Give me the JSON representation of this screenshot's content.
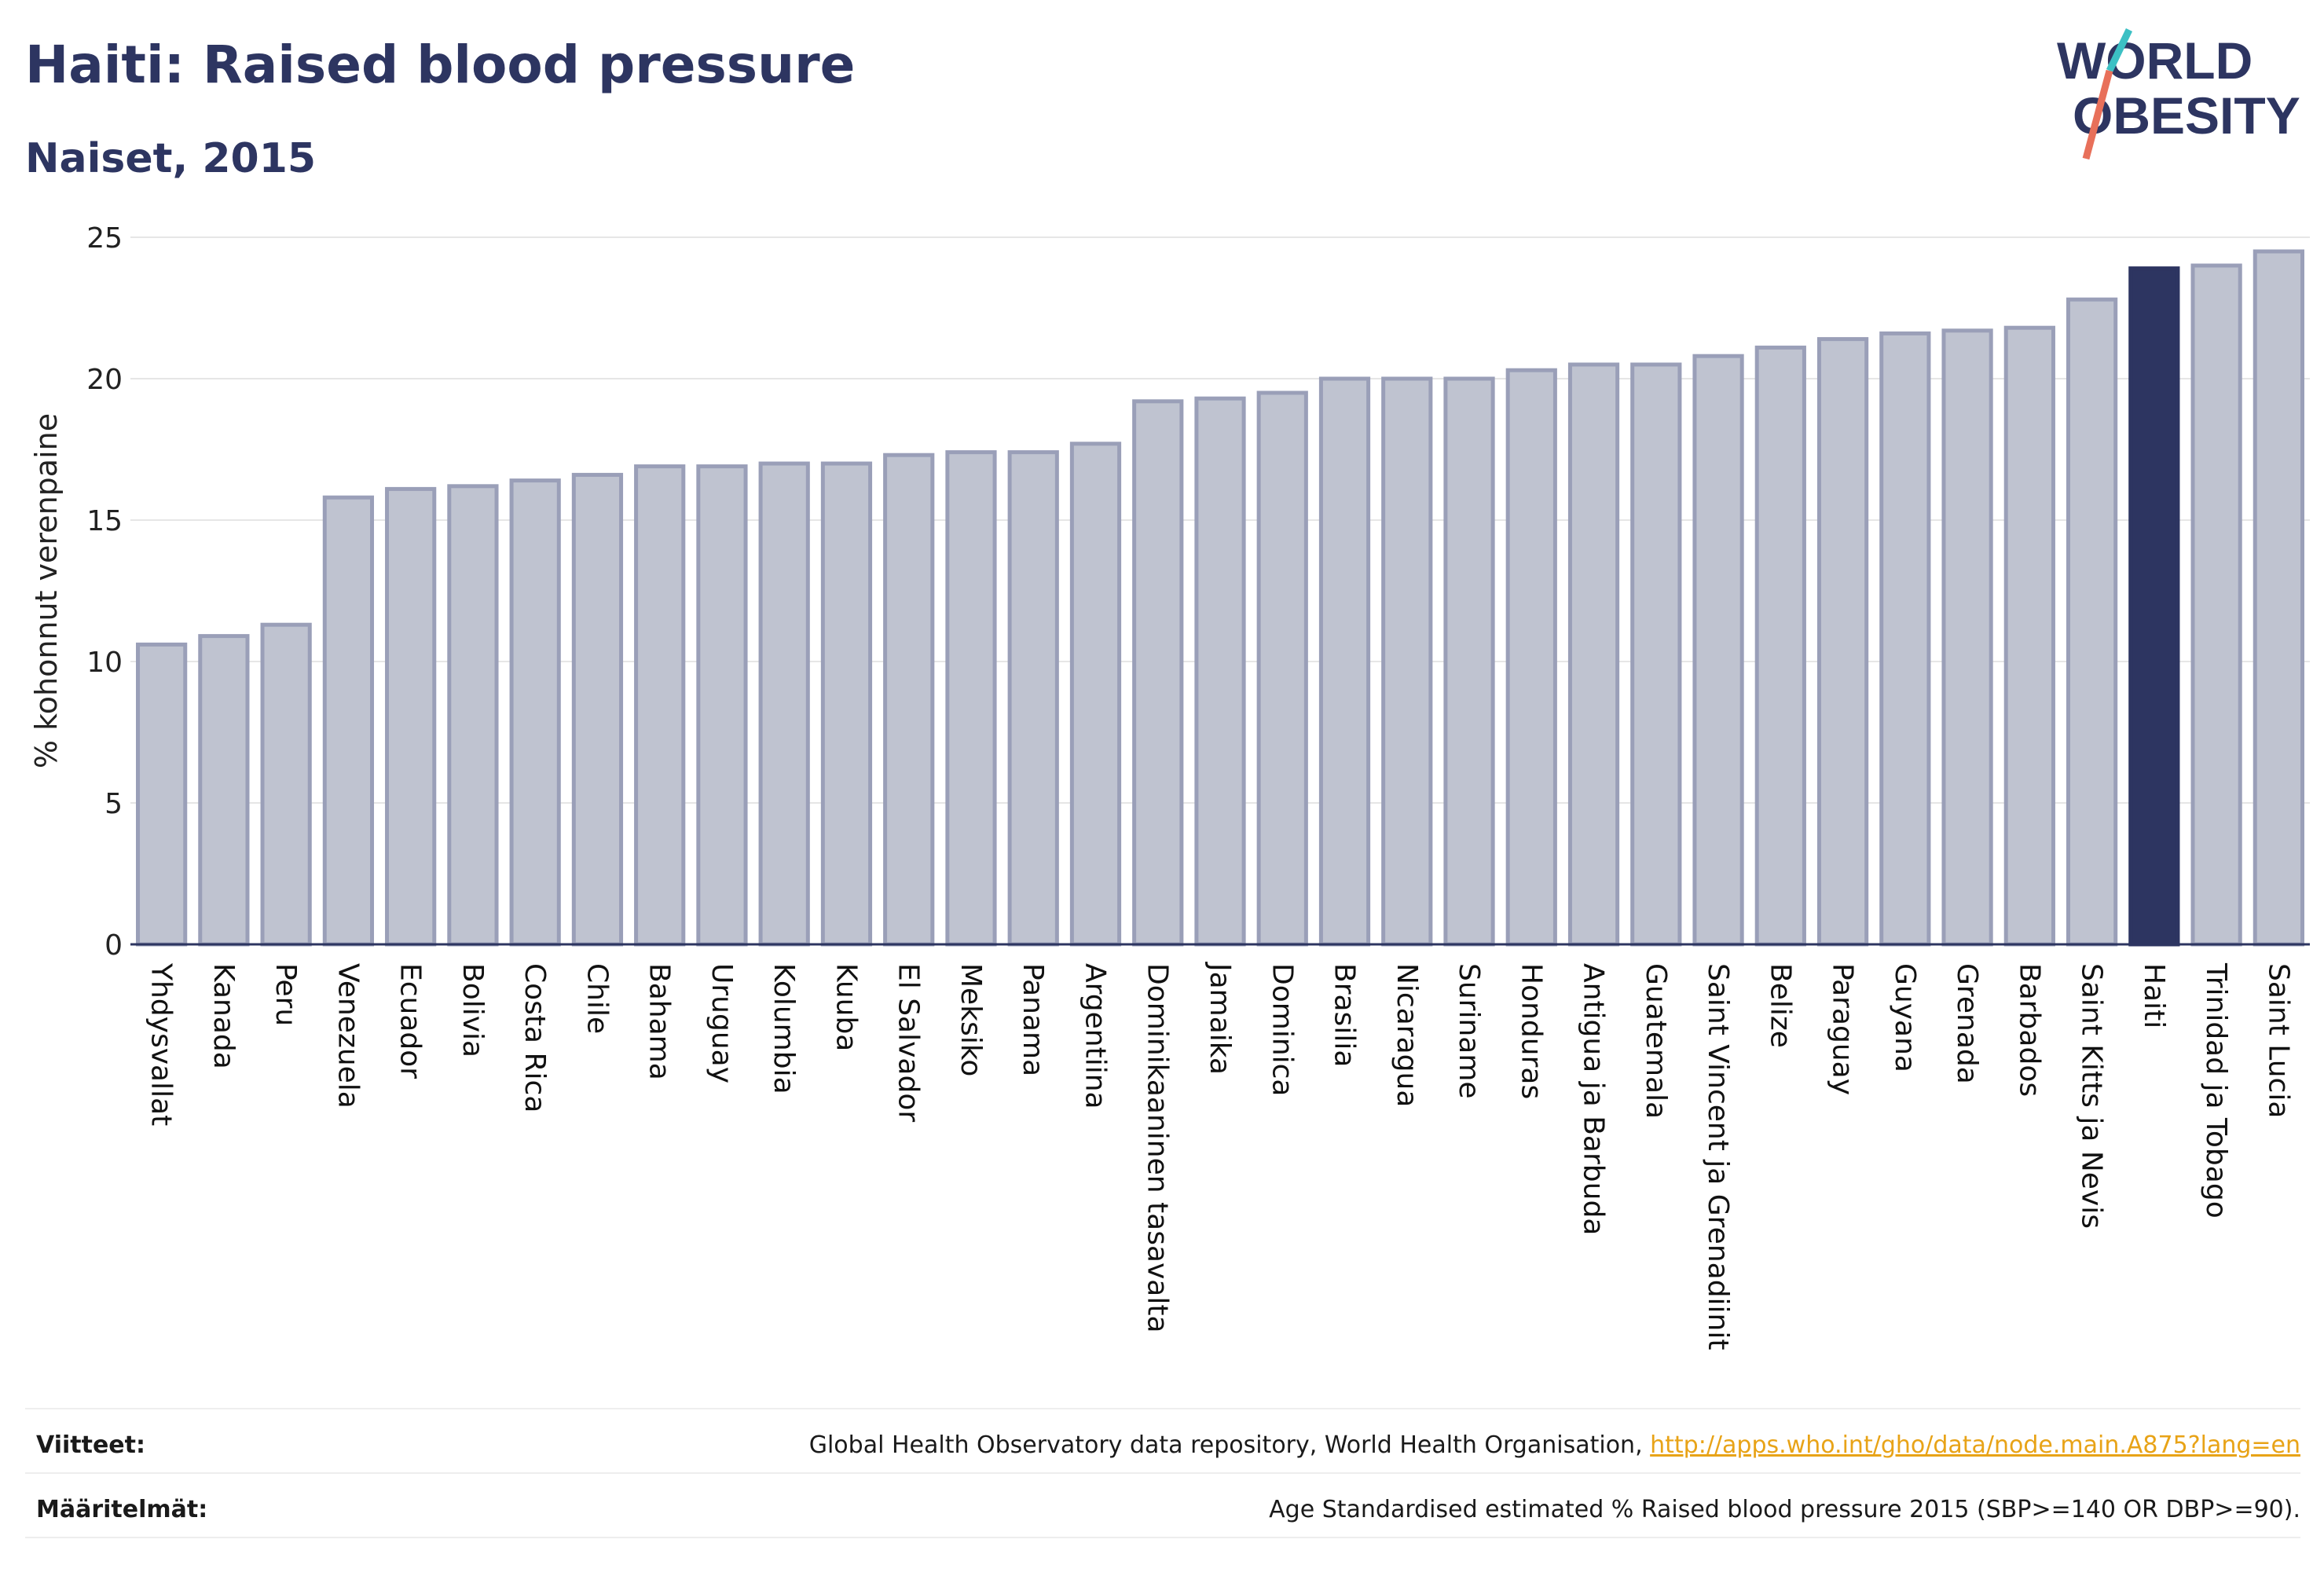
{
  "title": "Haiti: Raised blood pressure",
  "subtitle": "Naiset, 2015",
  "logo": {
    "line1": "WORLD",
    "line2": "OBESITY"
  },
  "colors": {
    "bar_fill": "#bfc3d0",
    "bar_stroke": "#9a9fb8",
    "highlight": "#2d3561",
    "text": "#2d3561",
    "link": "#e8a317",
    "logo_teal": "#3cc0c4",
    "logo_coral": "#e8705a"
  },
  "chart_data": {
    "type": "bar",
    "ylabel": "% kohonnut verenpaine",
    "ylim": [
      0,
      25
    ],
    "yticks": [
      0,
      5,
      10,
      15,
      20,
      25
    ],
    "grid": true,
    "highlight": "Haiti",
    "categories": [
      "Yhdysvallat",
      "Kanada",
      "Peru",
      "Venezuela",
      "Ecuador",
      "Bolivia",
      "Costa Rica",
      "Chile",
      "Bahama",
      "Uruguay",
      "Kolumbia",
      "Kuuba",
      "El Salvador",
      "Meksiko",
      "Panama",
      "Argentiina",
      "Dominikaaninen tasavalta",
      "Jamaika",
      "Dominica",
      "Brasilia",
      "Nicaragua",
      "Suriname",
      "Honduras",
      "Antigua ja Barbuda",
      "Guatemala",
      "Saint Vincent ja Grenadiinit",
      "Belize",
      "Paraguay",
      "Guyana",
      "Grenada",
      "Barbados",
      "Saint Kitts ja Nevis",
      "Haiti",
      "Trinidad ja Tobago",
      "Saint Lucia"
    ],
    "values": [
      10.6,
      10.9,
      11.3,
      15.8,
      16.1,
      16.2,
      16.4,
      16.6,
      16.9,
      16.9,
      17.0,
      17.0,
      17.3,
      17.4,
      17.4,
      17.7,
      19.2,
      19.3,
      19.5,
      20.0,
      20.0,
      20.0,
      20.3,
      20.5,
      20.5,
      20.8,
      21.1,
      21.4,
      21.6,
      21.7,
      21.8,
      22.8,
      23.9,
      24.0,
      24.5
    ]
  },
  "footer": {
    "sources_label": "Viitteet:",
    "sources_text": "Global Health Observatory data repository, World Health Organisation, ",
    "sources_link": "http://apps.who.int/gho/data/node.main.A875?lang=en",
    "definitions_label": "Määritelmät:",
    "definitions_text": "Age Standardised estimated % Raised blood pressure 2015 (SBP>=140 OR DBP>=90)."
  }
}
